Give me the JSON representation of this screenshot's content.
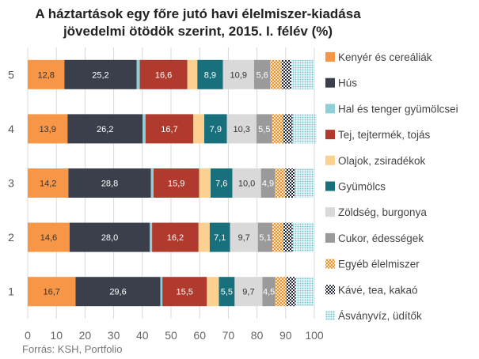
{
  "chart_data": {
    "type": "bar",
    "orientation": "horizontal",
    "stacked": true,
    "title": "A háztartások egy főre jutó havi élelmiszer-kiadása",
    "subtitle": "jövedelmi ötödök szerint, 2015. I. félév (%)",
    "source": "Forrás: KSH, Portfolio",
    "categories": [
      "5",
      "4",
      "3",
      "2",
      "1"
    ],
    "xlim": [
      0,
      100
    ],
    "xticks": [
      "0",
      "10",
      "20",
      "30",
      "40",
      "50",
      "60",
      "70",
      "80",
      "90",
      "100"
    ],
    "grid": true,
    "legend_position": "right",
    "series": [
      {
        "name": "Kenyér és cereáliák",
        "color": "#f79646",
        "pattern": "solid",
        "labeled": true,
        "label_color": "#333333",
        "values": [
          12.8,
          13.9,
          14.2,
          14.6,
          16.7
        ],
        "labels": [
          "12,8",
          "13,9",
          "14,2",
          "14,6",
          "16,7"
        ]
      },
      {
        "name": "Hús",
        "color": "#3a3f4b",
        "pattern": "solid",
        "labeled": true,
        "label_color": "#ffffff",
        "values": [
          25.2,
          26.2,
          28.8,
          28.0,
          29.6
        ],
        "labels": [
          "25,2",
          "26,2",
          "28,8",
          "28,0",
          "29,6"
        ]
      },
      {
        "name": "Hal és tenger gyümölcsei",
        "color": "#8fcfd8",
        "pattern": "solid",
        "labeled": false,
        "values": [
          1.1,
          1.0,
          0.9,
          0.8,
          0.7
        ]
      },
      {
        "name": "Tej, tejtermék, tojás",
        "color": "#b03a2e",
        "pattern": "solid",
        "labeled": true,
        "label_color": "#ffffff",
        "values": [
          16.6,
          16.7,
          15.9,
          16.2,
          15.5
        ],
        "labels": [
          "16,6",
          "16,7",
          "15,9",
          "16,2",
          "15,5"
        ]
      },
      {
        "name": "Olajok, zsiradékok",
        "color": "#fcd08f",
        "pattern": "solid",
        "labeled": false,
        "values": [
          3.5,
          3.8,
          4.0,
          3.9,
          4.2
        ]
      },
      {
        "name": "Gyümölcs",
        "color": "#17707c",
        "pattern": "solid",
        "labeled": true,
        "label_color": "#ffffff",
        "values": [
          8.9,
          7.9,
          7.6,
          7.1,
          5.5
        ],
        "labels": [
          "8,9",
          "7,9",
          "7,6",
          "7,1",
          "5,5"
        ]
      },
      {
        "name": "Zöldség, burgonya",
        "color": "#d9d9d9",
        "pattern": "solid",
        "labeled": true,
        "label_color": "#333333",
        "values": [
          10.9,
          10.3,
          10.0,
          9.7,
          9.7
        ],
        "labels": [
          "10,9",
          "10,3",
          "10,0",
          "9,7",
          "9,7"
        ]
      },
      {
        "name": "Cukor, édességek",
        "color": "#9a9a9a",
        "pattern": "solid",
        "labeled": true,
        "label_color": "#ffffff",
        "values": [
          5.6,
          5.5,
          4.9,
          5.1,
          4.5
        ],
        "labels": [
          "5,6",
          "5,5",
          "4,9",
          "5,1",
          "4,5"
        ]
      },
      {
        "name": "Egyéb élelmiszer",
        "color": "#f0a04b",
        "pattern": "hatch",
        "labeled": false,
        "values": [
          4.0,
          3.8,
          3.6,
          3.8,
          3.8
        ]
      },
      {
        "name": "Kávé, tea, kakaó",
        "color": "#1f2533",
        "pattern": "checker",
        "labeled": false,
        "values": [
          3.4,
          3.3,
          3.3,
          3.3,
          3.3
        ]
      },
      {
        "name": "Ásványvíz, üdítők",
        "color": "#7fc6cf",
        "pattern": "dots",
        "labeled": false,
        "values": [
          8.0,
          8.4,
          6.8,
          7.5,
          6.4
        ]
      }
    ]
  }
}
